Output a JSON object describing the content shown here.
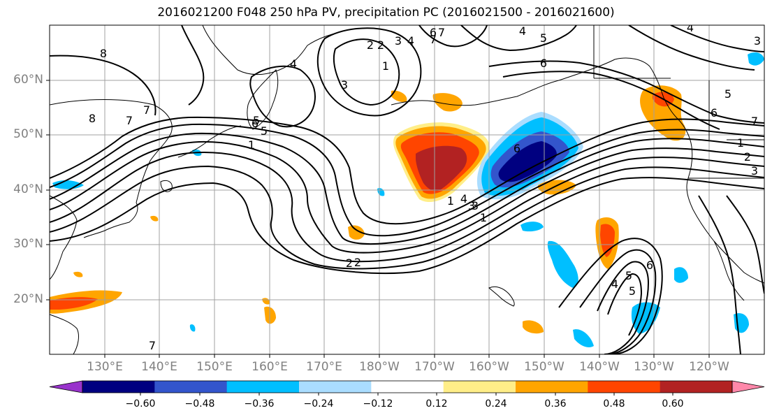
{
  "title": "2016021200 F048 250 hPa PV, precipitation PC (2016021500 - 2016021600)",
  "lat_labels": [
    "60°N",
    "50°N",
    "40°N",
    "30°N",
    "20°N"
  ],
  "lon_labels": [
    "130°E",
    "140°E",
    "150°E",
    "160°E",
    "170°E",
    "180°W",
    "170°W",
    "160°W",
    "150°W",
    "140°W",
    "130°W",
    "120°W"
  ],
  "contour_labels": [
    "8",
    "7",
    "6",
    "5",
    "4",
    "3",
    "2",
    "1",
    "1",
    "2",
    "3",
    "4",
    "5",
    "6",
    "7",
    "8",
    "1",
    "2",
    "3",
    "4",
    "5",
    "6",
    "7",
    "4",
    "5",
    "6",
    "7",
    "1",
    "2",
    "3",
    "4",
    "5",
    "6",
    "7",
    "3",
    "4",
    "6",
    "7",
    "5",
    "1",
    "2",
    "3"
  ],
  "colorbar": {
    "ticks": [
      "−0.60",
      "−0.48",
      "−0.36",
      "−0.24",
      "−0.12",
      "0.12",
      "0.24",
      "0.36",
      "0.48",
      "0.60"
    ],
    "colors": [
      "#9933cc",
      "#000080",
      "#3355cc",
      "#00bfff",
      "#aaddff",
      "#ffffff",
      "#ffee88",
      "#ffa500",
      "#ff4500",
      "#b22222",
      "#ff88aa"
    ]
  },
  "map_colors": {
    "ocean": "#ffffff",
    "coast": "#000000",
    "grid": "#a0a0a0",
    "contour": "#000000"
  }
}
